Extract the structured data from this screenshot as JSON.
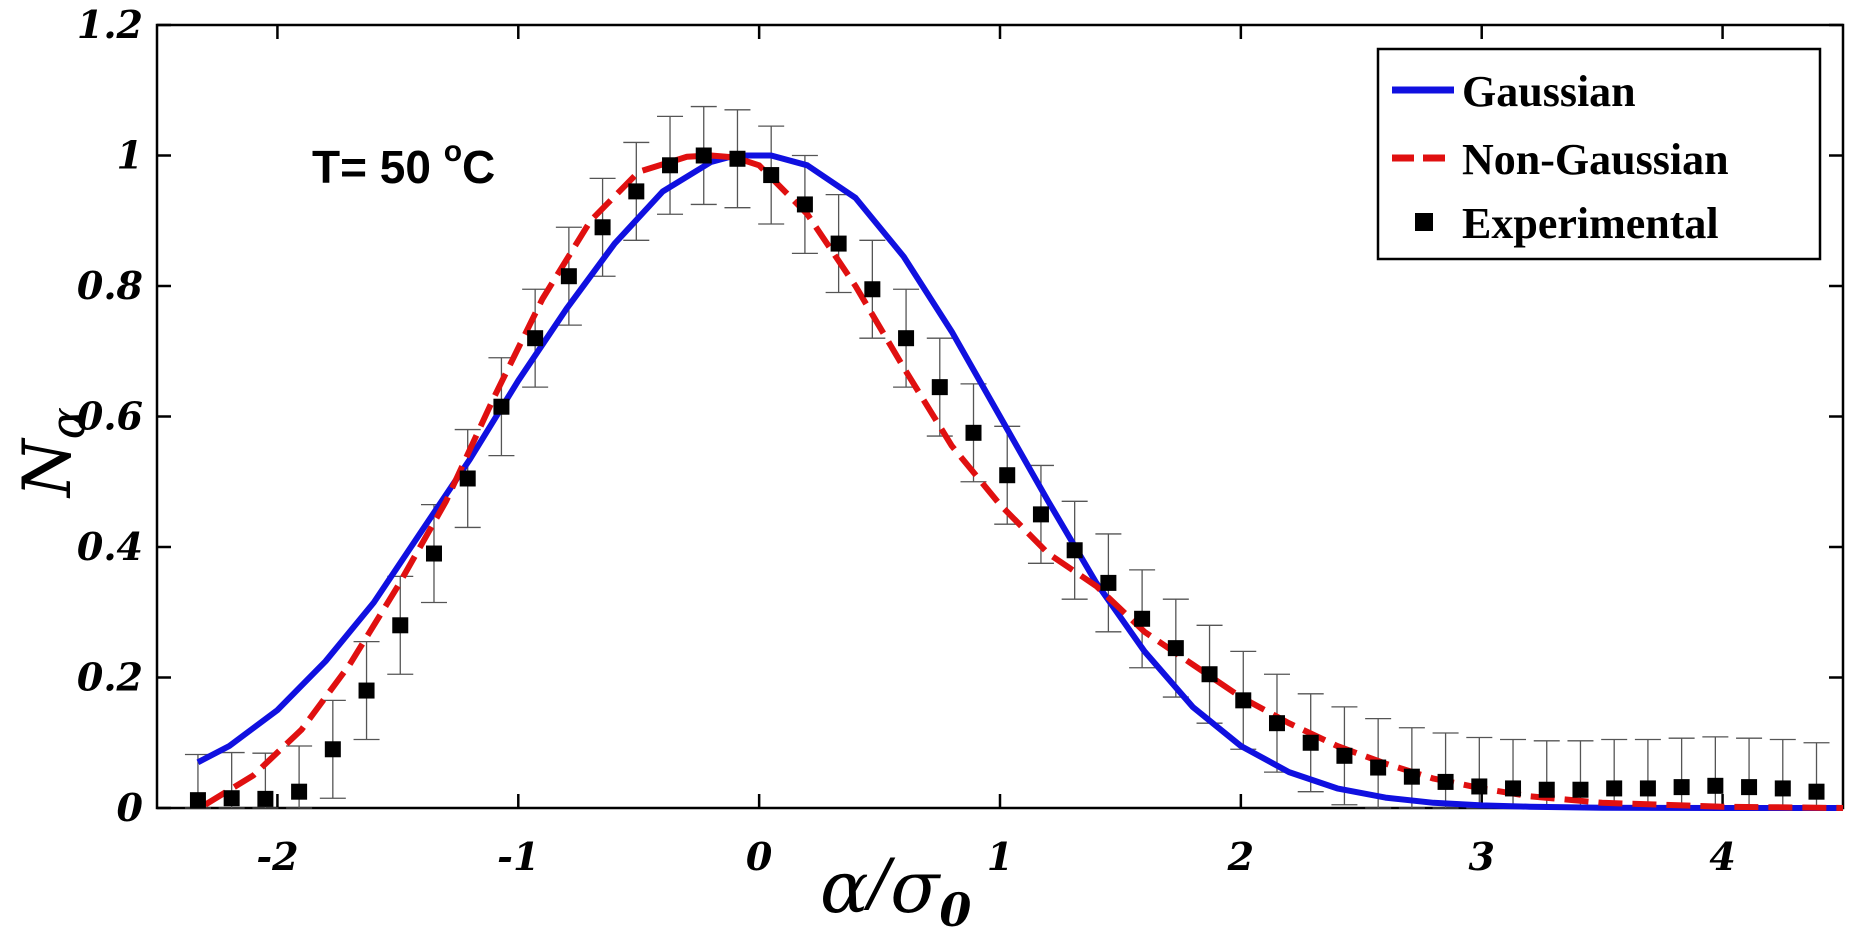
{
  "chart_data": {
    "type": "line",
    "xlim": [
      -2.5,
      4.5
    ],
    "ylim": [
      0,
      1.2
    ],
    "xticks": [
      "-2",
      "-1",
      "0",
      "1",
      "2",
      "3",
      "4"
    ],
    "yticks": [
      "0",
      "0.2",
      "0.4",
      "0.6",
      "0.8",
      "1",
      "1.2"
    ],
    "xlabel": {
      "main": "α",
      "slash": "/",
      "sigma": "σ",
      "sub": "0"
    },
    "ylabel": {
      "main": "N",
      "sub": "α"
    },
    "annotation": {
      "prefix": "T= 50 ",
      "sup": "o",
      "unit": "C"
    },
    "legend": {
      "position": "top-right",
      "entries": [
        {
          "label": "Gaussian",
          "style": "solid",
          "color": "#1010e0"
        },
        {
          "label": "Non-Gaussian",
          "style": "dashed",
          "color": "#e01010"
        },
        {
          "label": "Experimental",
          "style": "marker",
          "color": "#000000"
        }
      ]
    },
    "series": [
      {
        "name": "Gaussian",
        "color": "#1010e0",
        "style": "solid",
        "x": [
          -2.33,
          -2.2,
          -2.0,
          -1.8,
          -1.6,
          -1.4,
          -1.2,
          -1.0,
          -0.8,
          -0.6,
          -0.4,
          -0.2,
          -0.1,
          0.0,
          0.05,
          0.2,
          0.4,
          0.6,
          0.8,
          1.0,
          1.2,
          1.4,
          1.6,
          1.8,
          2.0,
          2.2,
          2.4,
          2.6,
          2.8,
          3.0,
          3.2,
          3.5,
          4.0,
          4.5
        ],
        "y": [
          0.07,
          0.095,
          0.15,
          0.225,
          0.315,
          0.425,
          0.535,
          0.655,
          0.765,
          0.865,
          0.945,
          0.99,
          1.0,
          1.0,
          1.0,
          0.985,
          0.935,
          0.845,
          0.73,
          0.6,
          0.47,
          0.345,
          0.24,
          0.155,
          0.095,
          0.055,
          0.03,
          0.016,
          0.008,
          0.004,
          0.002,
          0.0005,
          0.0,
          0.0
        ]
      },
      {
        "name": "Non-Gaussian",
        "color": "#e01010",
        "style": "dashed",
        "x": [
          -2.3,
          -2.1,
          -1.9,
          -1.7,
          -1.5,
          -1.3,
          -1.1,
          -0.9,
          -0.7,
          -0.5,
          -0.3,
          -0.2,
          -0.1,
          0.0,
          0.2,
          0.4,
          0.6,
          0.8,
          1.0,
          1.2,
          1.4,
          1.6,
          1.8,
          2.0,
          2.2,
          2.4,
          2.6,
          2.8,
          3.0,
          3.2,
          3.5,
          4.0,
          4.5
        ],
        "y": [
          0.005,
          0.05,
          0.12,
          0.22,
          0.34,
          0.47,
          0.63,
          0.78,
          0.9,
          0.975,
          0.998,
          1.0,
          0.997,
          0.985,
          0.91,
          0.8,
          0.675,
          0.555,
          0.465,
          0.39,
          0.34,
          0.27,
          0.22,
          0.17,
          0.13,
          0.095,
          0.068,
          0.045,
          0.03,
          0.018,
          0.008,
          0.002,
          0.0
        ]
      }
    ],
    "experimental": {
      "name": "Experimental",
      "x": [
        -2.33,
        -2.19,
        -2.05,
        -1.91,
        -1.77,
        -1.63,
        -1.49,
        -1.35,
        -1.21,
        -1.07,
        -0.93,
        -0.79,
        -0.65,
        -0.51,
        -0.37,
        -0.23,
        -0.09,
        0.05,
        0.19,
        0.33,
        0.47,
        0.61,
        0.75,
        0.89,
        1.03,
        1.17,
        1.31,
        1.45,
        1.59,
        1.73,
        1.87,
        2.01,
        2.15,
        2.29,
        2.43,
        2.57,
        2.71,
        2.85,
        2.99,
        3.13,
        3.27,
        3.41,
        3.55,
        3.69,
        3.83,
        3.97,
        4.11,
        4.25,
        4.39
      ],
      "y": [
        0.012,
        0.015,
        0.014,
        0.025,
        0.09,
        0.18,
        0.28,
        0.39,
        0.505,
        0.615,
        0.72,
        0.815,
        0.89,
        0.945,
        0.985,
        1.0,
        0.995,
        0.97,
        0.925,
        0.865,
        0.795,
        0.72,
        0.645,
        0.575,
        0.51,
        0.45,
        0.395,
        0.345,
        0.29,
        0.245,
        0.205,
        0.165,
        0.13,
        0.1,
        0.08,
        0.062,
        0.048,
        0.04,
        0.033,
        0.03,
        0.028,
        0.028,
        0.03,
        0.03,
        0.032,
        0.034,
        0.032,
        0.03,
        0.025
      ],
      "err": [
        0.07,
        0.07,
        0.07,
        0.07,
        0.075,
        0.075,
        0.075,
        0.075,
        0.075,
        0.075,
        0.075,
        0.075,
        0.075,
        0.075,
        0.075,
        0.075,
        0.075,
        0.075,
        0.075,
        0.075,
        0.075,
        0.075,
        0.075,
        0.075,
        0.075,
        0.075,
        0.075,
        0.075,
        0.075,
        0.075,
        0.075,
        0.075,
        0.075,
        0.075,
        0.075,
        0.075,
        0.075,
        0.075,
        0.075,
        0.075,
        0.075,
        0.075,
        0.075,
        0.075,
        0.075,
        0.075,
        0.075,
        0.075,
        0.075
      ]
    }
  }
}
